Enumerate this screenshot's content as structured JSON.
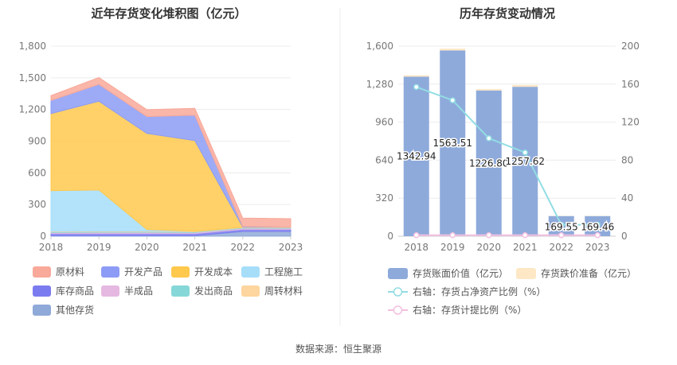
{
  "chart_data": [
    {
      "type": "area",
      "title": "近年存货变化堆积图（亿元）",
      "categories": [
        "2018",
        "2019",
        "2020",
        "2021",
        "2022",
        "2023"
      ],
      "y_ticks": [
        "0",
        "300",
        "600",
        "900",
        "1,200",
        "1,500",
        "1,800"
      ],
      "ylim": [
        0,
        1800
      ],
      "stack_order": [
        "其他存货",
        "库存商品",
        "半成品",
        "发出商品",
        "周转材料",
        "工程施工",
        "开发成本",
        "开发产品",
        "原材料"
      ],
      "series": [
        {
          "name": "原材料",
          "color": "#f8a99a",
          "values": [
            45,
            65,
            65,
            65,
            80,
            80
          ]
        },
        {
          "name": "开发产品",
          "color": "#8c9cf6",
          "values": [
            125,
            160,
            160,
            240,
            5,
            0
          ]
        },
        {
          "name": "开发成本",
          "color": "#ffc94d",
          "values": [
            730,
            840,
            910,
            860,
            0,
            0
          ]
        },
        {
          "name": "工程施工",
          "color": "#a6defa",
          "values": [
            385,
            390,
            15,
            0,
            0,
            0
          ]
        },
        {
          "name": "库存商品",
          "color": "#7b7bf0",
          "values": [
            20,
            20,
            20,
            20,
            20,
            20
          ]
        },
        {
          "name": "半成品",
          "color": "#e5b8e2",
          "values": [
            10,
            12,
            12,
            10,
            10,
            10
          ]
        },
        {
          "name": "发出商品",
          "color": "#86d7d7",
          "values": [
            6,
            6,
            6,
            6,
            6,
            6
          ]
        },
        {
          "name": "周转材料",
          "color": "#fdd59e",
          "values": [
            5,
            5,
            5,
            5,
            5,
            5
          ]
        },
        {
          "name": "其他存货",
          "color": "#8fa9d8",
          "values": [
            5,
            5,
            5,
            5,
            45,
            45
          ]
        }
      ],
      "legend": [
        "原材料",
        "开发产品",
        "开发成本",
        "工程施工",
        "库存商品",
        "半成品",
        "发出商品",
        "周转材料",
        "其他存货"
      ],
      "legend_position": "bottom"
    },
    {
      "type": "bar",
      "title": "历年存货变动情况",
      "categories": [
        "2018",
        "2019",
        "2020",
        "2021",
        "2022",
        "2023"
      ],
      "y_left_ticks": [
        "0",
        "320",
        "640",
        "960",
        "1,280",
        "1,600"
      ],
      "y_left_lim": [
        0,
        1600
      ],
      "y_right_ticks": [
        "0",
        "40",
        "80",
        "120",
        "160",
        "200"
      ],
      "y_right_lim": [
        0,
        200
      ],
      "series": [
        {
          "name": "存货账面价值（亿元）",
          "color": "#8eaadb",
          "axis": "left",
          "values": [
            1342.94,
            1563.51,
            1226.8,
            1257.62,
            169.55,
            169.46
          ]
        },
        {
          "name": "存货跌价准备（亿元）",
          "color": "#fde7c5",
          "axis": "left",
          "values": [
            12,
            15,
            12,
            15,
            2,
            2
          ]
        },
        {
          "name": "右轴：存货占净资产比例（%）",
          "color": "#92dde3",
          "axis": "right",
          "type": "line",
          "values": [
            157,
            143,
            103,
            88,
            12,
            12
          ]
        },
        {
          "name": "右轴：存货计提比例（%）",
          "color": "#f3c0e0",
          "axis": "right",
          "type": "line",
          "values": [
            1,
            1,
            1,
            1,
            1,
            1
          ]
        }
      ],
      "data_labels": [
        "1342.94",
        "1563.51",
        "1226.80",
        "1257.62",
        "169.55",
        "169.46"
      ],
      "legend_position": "bottom"
    }
  ],
  "footer": {
    "source": "数据来源：恒生聚源"
  }
}
